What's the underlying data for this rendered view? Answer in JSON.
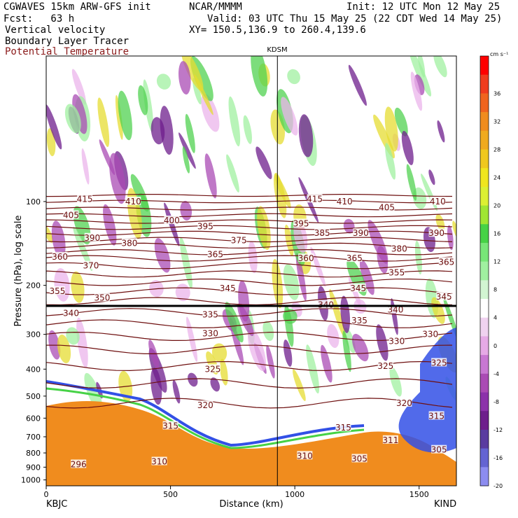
{
  "header": {
    "model": "CGWAVES 15km ARW-GFS init",
    "org": "NCAR/MMMM",
    "init": "Init: 12 UTC Mon 12 May 25",
    "fcst": "Fcst:   63 h",
    "valid": "Valid: 03 UTC Thu 15 May 25 (22 CDT Wed 14 May 25)",
    "field1": "Vertical velocity",
    "field2": "Boundary Layer Tracer",
    "field3": "Potential Temperature",
    "xy": "XY= 150.5,136.9 to 260.4,139.6"
  },
  "colors": {
    "theta": "#6e0f0f",
    "tracer_fill": "#f08c1e",
    "up_light": "#a0f0a0",
    "up_mid": "#50d250",
    "up_strong": "#e6dc32",
    "down_light": "#ebb4eb",
    "down_mid": "#aa4bb4",
    "down_strong": "#6e1e8c"
  },
  "chart_data": {
    "type": "heatmap",
    "title": "",
    "station_marker": "KDSM",
    "xlabel": "Distance (km)",
    "ylabel": "Pressure (hPa), log scale",
    "x_ticks": [
      "0",
      "500",
      "1000",
      "1500"
    ],
    "x_range": [
      0,
      1650
    ],
    "y_ticks": [
      "100",
      "200",
      "300",
      "400",
      "500",
      "600",
      "700",
      "800",
      "900",
      "1000"
    ],
    "y_range": [
      1050,
      30
    ],
    "left_station": "KBJC",
    "right_station": "KIND",
    "station_line_x": 930,
    "colorbar": {
      "unit": "cm s⁻¹",
      "ticks": [
        "36",
        "32",
        "28",
        "24",
        "20",
        "16",
        "12",
        "8",
        "4",
        "0",
        "-4",
        "-8",
        "-12",
        "-16",
        "-20"
      ],
      "colors": [
        "#ff0000",
        "#f03c1e",
        "#f0641e",
        "#f08c1e",
        "#f0aa1e",
        "#f0c81e",
        "#f0e61e",
        "#dcf032",
        "#a0e632",
        "#46d246",
        "#78e678",
        "#a0f0a0",
        "#d2f5d2",
        "#ffffff",
        "#f0d2f0",
        "#e6aae6",
        "#c878d2",
        "#aa4bb4",
        "#8c32aa",
        "#6e1e8c",
        "#5a3ca0",
        "#6464d2",
        "#8c8cf0"
      ]
    },
    "theta_labels": [
      {
        "label": "415",
        "x": 155,
        "p": 98
      },
      {
        "label": "410",
        "x": 350,
        "p": 100
      },
      {
        "label": "405",
        "x": 100,
        "p": 112
      },
      {
        "label": "400",
        "x": 505,
        "p": 117
      },
      {
        "label": "395",
        "x": 640,
        "p": 123
      },
      {
        "label": "390",
        "x": 185,
        "p": 135
      },
      {
        "label": "380",
        "x": 335,
        "p": 141
      },
      {
        "label": "375",
        "x": 775,
        "p": 138
      },
      {
        "label": "365",
        "x": 680,
        "p": 155
      },
      {
        "label": "360",
        "x": 55,
        "p": 158
      },
      {
        "label": "370",
        "x": 180,
        "p": 170
      },
      {
        "label": "350",
        "x": 225,
        "p": 222
      },
      {
        "label": "355",
        "x": 45,
        "p": 210
      },
      {
        "label": "345",
        "x": 730,
        "p": 205
      },
      {
        "label": "340",
        "x": 100,
        "p": 252
      },
      {
        "label": "335",
        "x": 660,
        "p": 255
      },
      {
        "label": "330",
        "x": 660,
        "p": 298
      },
      {
        "label": "325",
        "x": 670,
        "p": 400
      },
      {
        "label": "320",
        "x": 640,
        "p": 540
      },
      {
        "label": "315",
        "x": 500,
        "p": 640
      },
      {
        "label": "310",
        "x": 455,
        "p": 860
      },
      {
        "label": "296",
        "x": 130,
        "p": 880
      },
      {
        "label": "415",
        "x": 1080,
        "p": 98
      },
      {
        "label": "410",
        "x": 1200,
        "p": 100
      },
      {
        "label": "405",
        "x": 1370,
        "p": 105
      },
      {
        "label": "410",
        "x": 1575,
        "p": 100
      },
      {
        "label": "395",
        "x": 1025,
        "p": 120
      },
      {
        "label": "385",
        "x": 1110,
        "p": 130
      },
      {
        "label": "390",
        "x": 1265,
        "p": 130
      },
      {
        "label": "390",
        "x": 1570,
        "p": 130
      },
      {
        "label": "380",
        "x": 1420,
        "p": 148
      },
      {
        "label": "360",
        "x": 1045,
        "p": 160
      },
      {
        "label": "365",
        "x": 1240,
        "p": 160
      },
      {
        "label": "365",
        "x": 1610,
        "p": 165
      },
      {
        "label": "355",
        "x": 1410,
        "p": 180
      },
      {
        "label": "345",
        "x": 1255,
        "p": 205
      },
      {
        "label": "345",
        "x": 1600,
        "p": 220
      },
      {
        "label": "340",
        "x": 1125,
        "p": 235
      },
      {
        "label": "340",
        "x": 1405,
        "p": 245
      },
      {
        "label": "335",
        "x": 1260,
        "p": 268
      },
      {
        "label": "330",
        "x": 1410,
        "p": 318
      },
      {
        "label": "330",
        "x": 1545,
        "p": 300
      },
      {
        "label": "325",
        "x": 1365,
        "p": 390
      },
      {
        "label": "325",
        "x": 1580,
        "p": 380
      },
      {
        "label": "320",
        "x": 1440,
        "p": 530
      },
      {
        "label": "315",
        "x": 1570,
        "p": 590
      },
      {
        "label": "315",
        "x": 1195,
        "p": 650
      },
      {
        "label": "311",
        "x": 1385,
        "p": 720
      },
      {
        "label": "310",
        "x": 1040,
        "p": 820
      },
      {
        "label": "305",
        "x": 1260,
        "p": 840
      },
      {
        "label": "305",
        "x": 1580,
        "p": 780
      }
    ]
  }
}
